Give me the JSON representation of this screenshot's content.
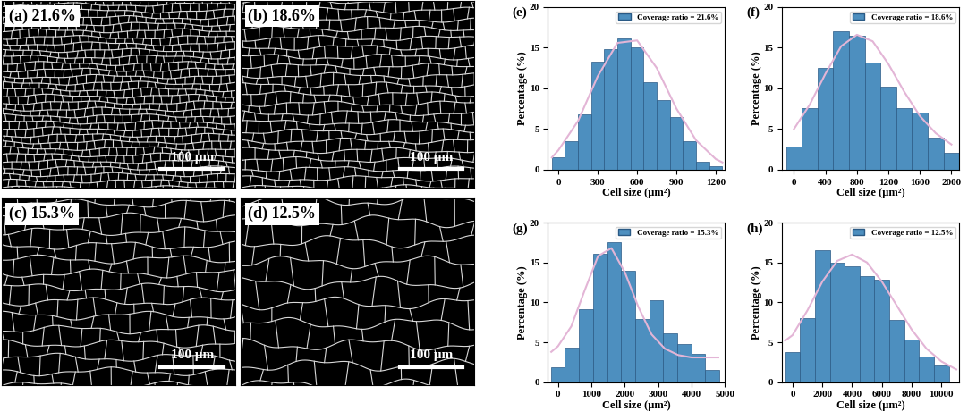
{
  "images": [
    {
      "label": "(a) 21.6%",
      "scale_bar": "100 μm"
    },
    {
      "label": "(b) 18.6%",
      "scale_bar": "100 μm"
    },
    {
      "label": "(c) 15.3%",
      "scale_bar": "100 μm"
    },
    {
      "label": "(d) 12.5%",
      "scale_bar": "100 μm"
    }
  ],
  "chart_data": [
    {
      "type": "histogram",
      "panel_label": "(e)",
      "xlabel": "Cell size (μm²)",
      "ylabel": "Percentage (%)",
      "bins": [
        -50,
        50,
        150,
        250,
        350,
        450,
        550,
        650,
        750,
        850,
        950,
        1050,
        1150,
        1250
      ],
      "xlim": [
        -80,
        1270
      ],
      "xticks": [
        0,
        300,
        600,
        900,
        1200
      ],
      "ylim": [
        0,
        20
      ],
      "yticks": [
        0,
        5,
        10,
        15,
        20
      ],
      "legend": "upper right",
      "series": [
        {
          "name": "Coverage ratio = 21.6%",
          "type": "bar",
          "color": "#4d8fbf",
          "values": [
            1.5,
            3.5,
            6.8,
            13.3,
            14.8,
            16.2,
            15.0,
            10.8,
            8.6,
            6.5,
            3.5,
            1.0,
            0.4
          ]
        },
        {
          "type": "line",
          "color": "#e3b5d6",
          "x": [
            -50,
            0,
            150,
            300,
            450,
            600,
            750,
            900,
            1050,
            1200,
            1250
          ],
          "values": [
            1.5,
            2.4,
            6.0,
            11.5,
            15.6,
            15.9,
            12.5,
            7.5,
            3.6,
            1.3,
            0.9
          ]
        }
      ]
    },
    {
      "type": "histogram",
      "panel_label": "(f)",
      "xlabel": "Cell size (μm²)",
      "ylabel": "Percentage (%)",
      "bins": [
        -100,
        100,
        300,
        500,
        700,
        900,
        1100,
        1300,
        1500,
        1700,
        1900,
        2100
      ],
      "xlim": [
        -150,
        2100
      ],
      "xticks": [
        0,
        400,
        800,
        1200,
        1600,
        2000
      ],
      "ylim": [
        0,
        20
      ],
      "yticks": [
        0,
        5,
        10,
        15,
        20
      ],
      "legend": "upper right",
      "series": [
        {
          "name": "Coverage ratio = 18.6%",
          "type": "bar",
          "color": "#4d8fbf",
          "values": [
            2.8,
            7.6,
            12.5,
            17.0,
            16.5,
            13.2,
            10.2,
            7.6,
            7.0,
            3.9,
            2.1
          ]
        },
        {
          "type": "line",
          "color": "#e3b5d6",
          "x": [
            0,
            200,
            400,
            600,
            800,
            1000,
            1200,
            1400,
            1600,
            1800,
            2000
          ],
          "values": [
            5.0,
            8.0,
            11.8,
            15.2,
            16.6,
            15.8,
            13.0,
            9.6,
            6.6,
            4.5,
            3.1
          ]
        }
      ]
    },
    {
      "type": "histogram",
      "panel_label": "(g)",
      "xlabel": "Cell size (μm²)",
      "ylabel": "Percentage (%)",
      "bins": [
        -210,
        210,
        630,
        1050,
        1470,
        1890,
        2310,
        2730,
        3150,
        3570,
        3990,
        4410,
        4830
      ],
      "xlim": [
        -300,
        5000
      ],
      "xticks": [
        0,
        1000,
        2000,
        3000,
        4000,
        5000
      ],
      "ylim": [
        0,
        20
      ],
      "yticks": [
        0,
        5,
        10,
        15,
        20
      ],
      "legend": "upper right",
      "series": [
        {
          "name": "Coverage ratio = 15.3%",
          "type": "bar",
          "color": "#4d8fbf",
          "values": [
            1.9,
            4.3,
            9.1,
            16.1,
            17.5,
            14.0,
            7.9,
            10.3,
            6.1,
            4.8,
            3.6,
            1.5
          ]
        },
        {
          "type": "line",
          "color": "#e3b5d6",
          "x": [
            -200,
            0,
            400,
            800,
            1200,
            1600,
            2000,
            2400,
            2800,
            3200,
            3600,
            4000,
            4400,
            4800
          ],
          "values": [
            3.8,
            4.5,
            7.0,
            11.5,
            15.8,
            16.8,
            13.8,
            9.5,
            6.0,
            4.2,
            3.4,
            3.1,
            3.1,
            3.1
          ]
        }
      ]
    },
    {
      "type": "histogram",
      "panel_label": "(h)",
      "xlabel": "Cell size (μm²)",
      "ylabel": "Percentage (%)",
      "bins": [
        -500,
        500,
        1500,
        2500,
        3500,
        4500,
        5500,
        6500,
        7500,
        8500,
        9500,
        10500
      ],
      "xlim": [
        -700,
        11200
      ],
      "xticks": [
        0,
        2000,
        4000,
        6000,
        8000,
        10000
      ],
      "ylim": [
        0,
        20
      ],
      "yticks": [
        0,
        5,
        10,
        15,
        20
      ],
      "legend": "upper right",
      "series": [
        {
          "name": "Coverage ratio = 12.5%",
          "type": "bar",
          "color": "#4d8fbf",
          "values": [
            3.8,
            8.0,
            16.5,
            15.0,
            14.5,
            13.3,
            12.8,
            7.8,
            5.3,
            3.2,
            2.1
          ]
        },
        {
          "type": "line",
          "color": "#e3b5d6",
          "x": [
            -500,
            0,
            1000,
            2000,
            3000,
            4000,
            5000,
            6000,
            7000,
            8000,
            9000,
            10000,
            11000
          ],
          "values": [
            5.2,
            5.9,
            9.0,
            12.6,
            15.2,
            16.0,
            15.0,
            12.6,
            9.6,
            6.6,
            4.2,
            2.6,
            1.6
          ]
        }
      ]
    }
  ]
}
